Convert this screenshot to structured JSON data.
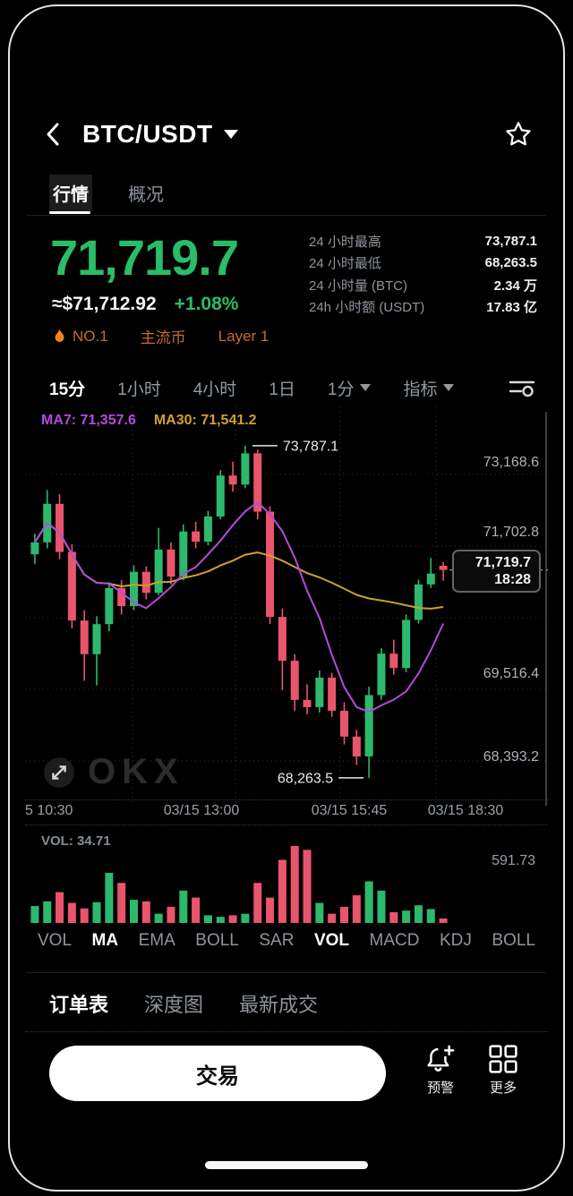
{
  "header": {
    "title": "BTC/USDT"
  },
  "market_tabs": [
    {
      "label": "行情",
      "active": true
    },
    {
      "label": "概况",
      "active": false
    }
  ],
  "price": {
    "last": "71,719.7",
    "fiat": "≈$71,712.92",
    "change": "+1.08%"
  },
  "badges": [
    {
      "icon": "flame-icon",
      "label": "NO.1"
    },
    {
      "label": "主流币"
    },
    {
      "label": "Layer 1"
    }
  ],
  "stats": [
    {
      "label": "24 小时最高",
      "value": "73,787.1"
    },
    {
      "label": "24 小时最低",
      "value": "68,263.5"
    },
    {
      "label": "24 小时量 (BTC)",
      "value": "2.34 万"
    },
    {
      "label": "24h 小时额 (USDT)",
      "value": "17.83 亿"
    }
  ],
  "timeframes": [
    {
      "label": "15分",
      "active": true
    },
    {
      "label": "1小时"
    },
    {
      "label": "4小时"
    },
    {
      "label": "1日"
    },
    {
      "label": "1分",
      "caret": true
    },
    {
      "label": "指标",
      "caret": true
    }
  ],
  "chart_data": {
    "type": "candlestick",
    "ma7_label": "MA7: 71,357.6",
    "ma30_label": "MA30: 71,541.2",
    "high_annotation": "73,787.1",
    "low_annotation": "68,263.5",
    "last_price": "71,719.7",
    "last_time": "18:28",
    "y_axis_labels": [
      "73,168.6",
      "71,702.8",
      "69,516.4",
      "68,393.2"
    ],
    "x_labels": [
      "5 10:30",
      "03/15 13:00",
      "03/15 15:45",
      "03/15 18:30"
    ],
    "vol_label": "VOL: 34.71",
    "vol_axis_label": "591.73",
    "watermark": "OKX",
    "colors": {
      "up": "#2cb96d",
      "down": "#e8556d",
      "ma7": "#b44bdb",
      "ma30": "#cfa02e",
      "price_accent": "#2abd68"
    },
    "candles": [
      [
        71980,
        72320,
        71820,
        72180
      ],
      [
        72180,
        73050,
        72080,
        72820
      ],
      [
        72820,
        72980,
        71900,
        72020
      ],
      [
        72020,
        72150,
        70750,
        70880
      ],
      [
        70880,
        71050,
        69880,
        70320
      ],
      [
        70320,
        70950,
        69800,
        70820
      ],
      [
        70820,
        71520,
        70700,
        71420
      ],
      [
        71420,
        71550,
        70980,
        71120
      ],
      [
        71120,
        71800,
        71050,
        71690
      ],
      [
        71690,
        71780,
        71230,
        71340
      ],
      [
        71340,
        72420,
        71300,
        72060
      ],
      [
        72060,
        72180,
        71480,
        71610
      ],
      [
        71610,
        72480,
        71550,
        72360
      ],
      [
        72360,
        72520,
        72080,
        72190
      ],
      [
        72190,
        72700,
        72130,
        72610
      ],
      [
        72610,
        73380,
        72560,
        73290
      ],
      [
        73290,
        73520,
        73020,
        73140
      ],
      [
        73140,
        73787.1,
        73080,
        73660
      ],
      [
        73660,
        73720,
        72560,
        72690
      ],
      [
        72690,
        72780,
        70820,
        70940
      ],
      [
        70940,
        71080,
        69720,
        70210
      ],
      [
        70210,
        70320,
        69380,
        69560
      ],
      [
        69560,
        69820,
        69320,
        69440
      ],
      [
        69440,
        70050,
        69350,
        69930
      ],
      [
        69930,
        70010,
        69280,
        69380
      ],
      [
        69380,
        69520,
        68820,
        68950
      ],
      [
        68950,
        69060,
        68480,
        68620
      ],
      [
        68620,
        69780,
        68263.5,
        69640
      ],
      [
        69640,
        70420,
        69560,
        70330
      ],
      [
        70330,
        70560,
        69980,
        70090
      ],
      [
        70090,
        70980,
        70020,
        70890
      ],
      [
        70890,
        71560,
        70830,
        71480
      ],
      [
        71480,
        71920,
        71420,
        71660
      ],
      [
        71790,
        71850,
        71540,
        71719.7
      ]
    ],
    "volumes": [
      130,
      166,
      237,
      154,
      112,
      160,
      385,
      308,
      178,
      166,
      71,
      124,
      249,
      195,
      59,
      47,
      59,
      71,
      308,
      195,
      485,
      591.73,
      562,
      154,
      71,
      124,
      213,
      320,
      249,
      83,
      95,
      136,
      107,
      34.71
    ]
  },
  "indicators": [
    {
      "label": "VOL"
    },
    {
      "label": "MA",
      "active": true
    },
    {
      "label": "EMA"
    },
    {
      "label": "BOLL"
    },
    {
      "label": "SAR"
    },
    {
      "label": "VOL",
      "active": true
    },
    {
      "label": "MACD"
    },
    {
      "label": "KDJ"
    },
    {
      "label": "BOLL"
    }
  ],
  "order_tabs": [
    {
      "label": "订单表",
      "active": true
    },
    {
      "label": "深度图"
    },
    {
      "label": "最新成交"
    }
  ],
  "bottom": {
    "trade": "交易",
    "alert": "预警",
    "more": "更多"
  }
}
